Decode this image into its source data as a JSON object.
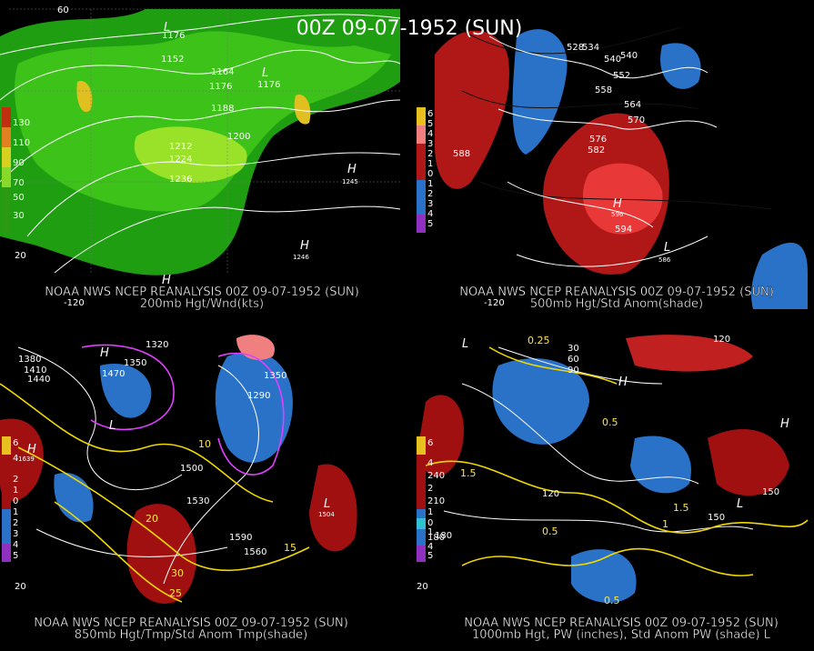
{
  "title": "00Z 09-07-1952 (SUN)",
  "panels": [
    {
      "caption": [
        "NOAA NWS NCEP REANALYSIS 00Z 09-07-1952 (SUN)",
        "200mb Hgt/Wnd(kts)"
      ],
      "colorbar": [
        "130",
        "110",
        "90",
        "70",
        "50",
        "30"
      ],
      "contour_labels": [
        "1152",
        "1164",
        "1176",
        "1188",
        "1200",
        "1212",
        "1224",
        "1236",
        "1176",
        "1176"
      ],
      "centers": [
        "L",
        "L",
        "H",
        "H",
        "H"
      ],
      "center_values": [
        "1245",
        "1246"
      ],
      "grid_labels": [
        "60",
        "-120",
        "20"
      ]
    },
    {
      "caption": [
        "NOAA NWS NCEP REANALYSIS 00Z 09-07-1952 (SUN)",
        "500mb Hgt/Std Anom(shade)"
      ],
      "colorbar": [
        "6",
        "5",
        "4",
        "3",
        "2",
        "1",
        "0",
        "1",
        "2",
        "3",
        "4",
        "5"
      ],
      "contour_labels": [
        "528",
        "534",
        "540",
        "552",
        "558",
        "564",
        "570",
        "576",
        "582",
        "588",
        "594",
        "540"
      ],
      "centers": [
        "H",
        "L"
      ],
      "center_values": [
        "596",
        "586"
      ],
      "grid_labels": [
        "-120"
      ]
    },
    {
      "caption": [
        "NOAA NWS NCEP REANALYSIS 00Z 09-07-1952 (SUN)",
        "850mb Hgt/Tmp/Std Anom Tmp(shade)"
      ],
      "colorbar": [
        "6",
        "4",
        "2",
        "1",
        "0",
        "1",
        "2",
        "3",
        "4",
        "5"
      ],
      "contour_labels": [
        "1320",
        "1350",
        "1380",
        "1410",
        "1440",
        "1470",
        "1500",
        "1530",
        "1560",
        "1590",
        "10",
        "15",
        "20",
        "25",
        "30",
        "1290",
        "1350"
      ],
      "centers": [
        "H",
        "L",
        "H",
        "L"
      ],
      "center_values": [
        "1639",
        "1504"
      ],
      "grid_labels": [
        "20"
      ]
    },
    {
      "caption": [
        "NOAA NWS NCEP REANALYSIS 00Z 09-07-1952 (SUN)",
        "1000mb Hgt, PW (inches), Std Anom PW (shade) L"
      ],
      "colorbar": [
        "6",
        "4",
        "240",
        "2",
        "210",
        "1",
        "0",
        "1",
        "180",
        "4",
        "5"
      ],
      "contour_labels": [
        "30",
        "60",
        "90",
        "120",
        "150",
        "180",
        "0.25",
        "0.5",
        "1",
        "1.5",
        "0.5",
        "0.5",
        "1.5",
        "120",
        "150"
      ],
      "centers": [
        "L",
        "H",
        "H",
        "L"
      ],
      "center_values": [],
      "grid_labels": [
        "20"
      ]
    }
  ]
}
